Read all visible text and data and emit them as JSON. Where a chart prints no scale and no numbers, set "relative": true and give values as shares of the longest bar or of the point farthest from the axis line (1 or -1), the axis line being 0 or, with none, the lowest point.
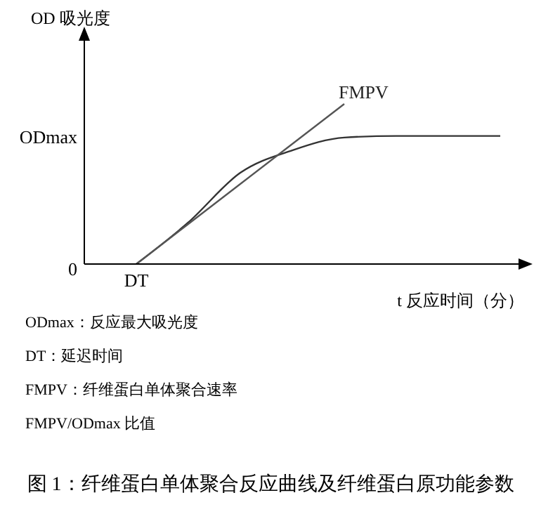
{
  "chart_data": {
    "type": "line",
    "title": "图 1：纤维蛋白单体聚合反应曲线及纤维蛋白原功能参数",
    "xlabel": "t  反应时间（分）",
    "ylabel": "OD 吸光度",
    "relative": true,
    "categories": [
      null,
      null,
      null,
      null,
      null,
      null,
      null,
      null,
      null
    ],
    "series": [
      {
        "color": "#333333",
        "values": [
          null,
          0,
          0.26,
          0.57,
          0.71,
          0.79,
          0.8,
          0.8,
          0.8
        ]
      },
      {
        "name": "FMPV",
        "color": "#555555",
        "values": [
          null,
          0,
          0.25,
          0.5,
          0.75,
          1,
          null,
          null,
          null
        ]
      }
    ],
    "annotations": [
      "0",
      "ODmax",
      "DT",
      "ODmax：反应最大吸光度",
      "DT：延迟时间",
      "FMPV：纤维蛋白单体聚合速率",
      "FMPV/ODmax 比值"
    ]
  }
}
